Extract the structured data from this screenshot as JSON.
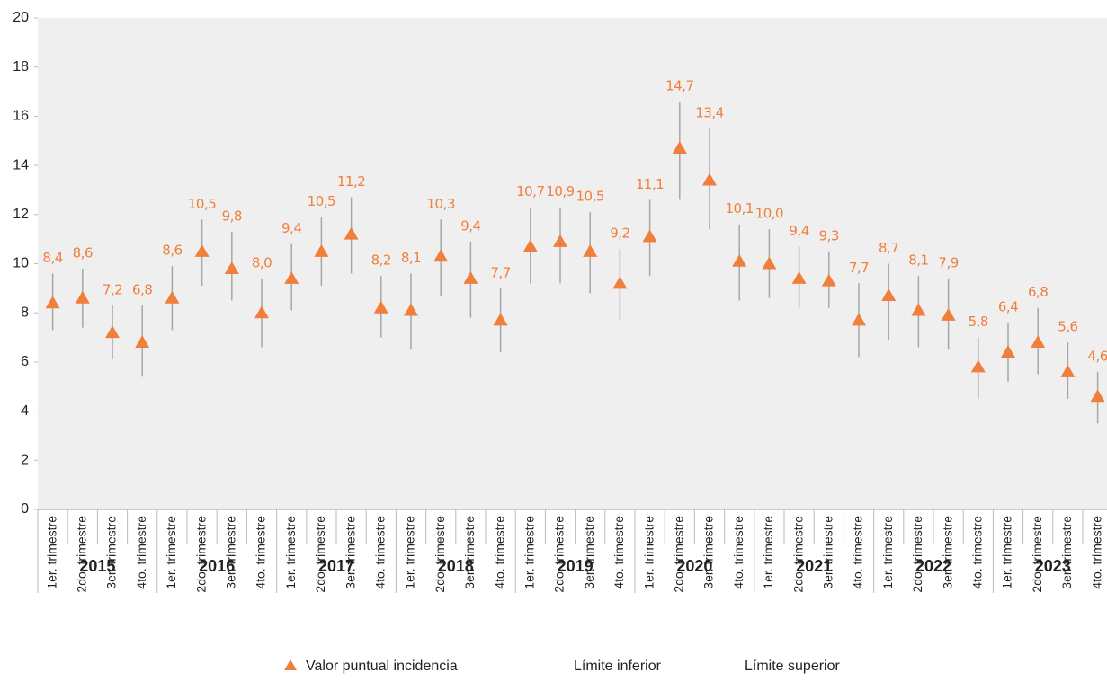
{
  "chart_data": {
    "type": "errorpoint",
    "categories": [
      "1er. trimestre",
      "2do. trimestre",
      "3er. trimestre",
      "4to. trimestre",
      "1er. trimestre",
      "2do. trimestre",
      "3er. trimestre",
      "4to. trimestre",
      "1er. trimestre",
      "2do. trimestre",
      "3er. trimestre",
      "4to. trimestre",
      "1er. trimestre",
      "2do. trimestre",
      "3er. trimestre",
      "4to. trimestre",
      "1er. trimestre",
      "2do. trimestre",
      "3er. trimestre",
      "4to. trimestre",
      "1er. trimestre",
      "2do. trimestre",
      "3er. trimestre",
      "4to. trimestre",
      "1er. trimestre",
      "2do. trimestre",
      "3er. trimestre",
      "4to. trimestre",
      "1er. trimestre",
      "2do. trimestre",
      "3er. trimestre",
      "4to. trimestre",
      "1er. trimestre",
      "2do. trimestre",
      "3er. trimestre",
      "4to. trimestre"
    ],
    "years": [
      "2015",
      "2016",
      "2017",
      "2018",
      "2019",
      "2020",
      "2021",
      "2022",
      "2023"
    ],
    "series": [
      {
        "name": "Valor puntual incidencia",
        "color": "#f07f3c",
        "values": [
          8.4,
          8.6,
          7.2,
          6.8,
          8.6,
          10.5,
          9.8,
          8.0,
          9.4,
          10.5,
          11.2,
          8.2,
          8.1,
          10.3,
          9.4,
          7.7,
          10.7,
          10.9,
          10.5,
          9.2,
          11.1,
          14.7,
          13.4,
          10.1,
          10.0,
          9.4,
          9.3,
          7.7,
          8.7,
          8.1,
          7.9,
          5.8,
          6.4,
          6.8,
          5.6,
          4.6
        ],
        "value_labels": [
          "8,4",
          "8,6",
          "7,2",
          "6,8",
          "8,6",
          "10,5",
          "9,8",
          "8,0",
          "9,4",
          "10,5",
          "11,2",
          "8,2",
          "8,1",
          "10,3",
          "9,4",
          "7,7",
          "10,7",
          "10,9",
          "10,5",
          "9,2",
          "11,1",
          "14,7",
          "13,4",
          "10,1",
          "10,0",
          "9,4",
          "9,3",
          "7,7",
          "8,7",
          "8,1",
          "7,9",
          "5,8",
          "6,4",
          "6,8",
          "5,6",
          "4,6"
        ]
      },
      {
        "name": "Límite inferior",
        "color": "#a6a6a6",
        "values": [
          7.3,
          7.4,
          6.1,
          5.4,
          7.3,
          9.1,
          8.5,
          6.6,
          8.1,
          9.1,
          9.6,
          7.0,
          6.5,
          8.7,
          7.8,
          6.4,
          9.2,
          9.2,
          8.8,
          7.7,
          9.5,
          12.6,
          11.4,
          8.5,
          8.6,
          8.2,
          8.2,
          6.2,
          6.9,
          6.6,
          6.5,
          4.5,
          5.2,
          5.5,
          4.5,
          3.5
        ]
      },
      {
        "name": "Límite superior",
        "color": "#a6a6a6",
        "values": [
          9.6,
          9.8,
          8.3,
          8.3,
          9.9,
          11.8,
          11.3,
          9.4,
          10.8,
          11.9,
          12.7,
          9.5,
          9.6,
          11.8,
          10.9,
          9.0,
          12.3,
          12.3,
          12.1,
          10.6,
          12.6,
          16.6,
          15.5,
          11.6,
          11.4,
          10.7,
          10.5,
          9.2,
          10.0,
          9.5,
          9.4,
          7.0,
          7.6,
          8.2,
          6.8,
          5.6
        ]
      }
    ],
    "ylim": [
      0,
      20
    ],
    "yticks": [
      0,
      2,
      4,
      6,
      8,
      10,
      12,
      14,
      16,
      18,
      20
    ]
  }
}
